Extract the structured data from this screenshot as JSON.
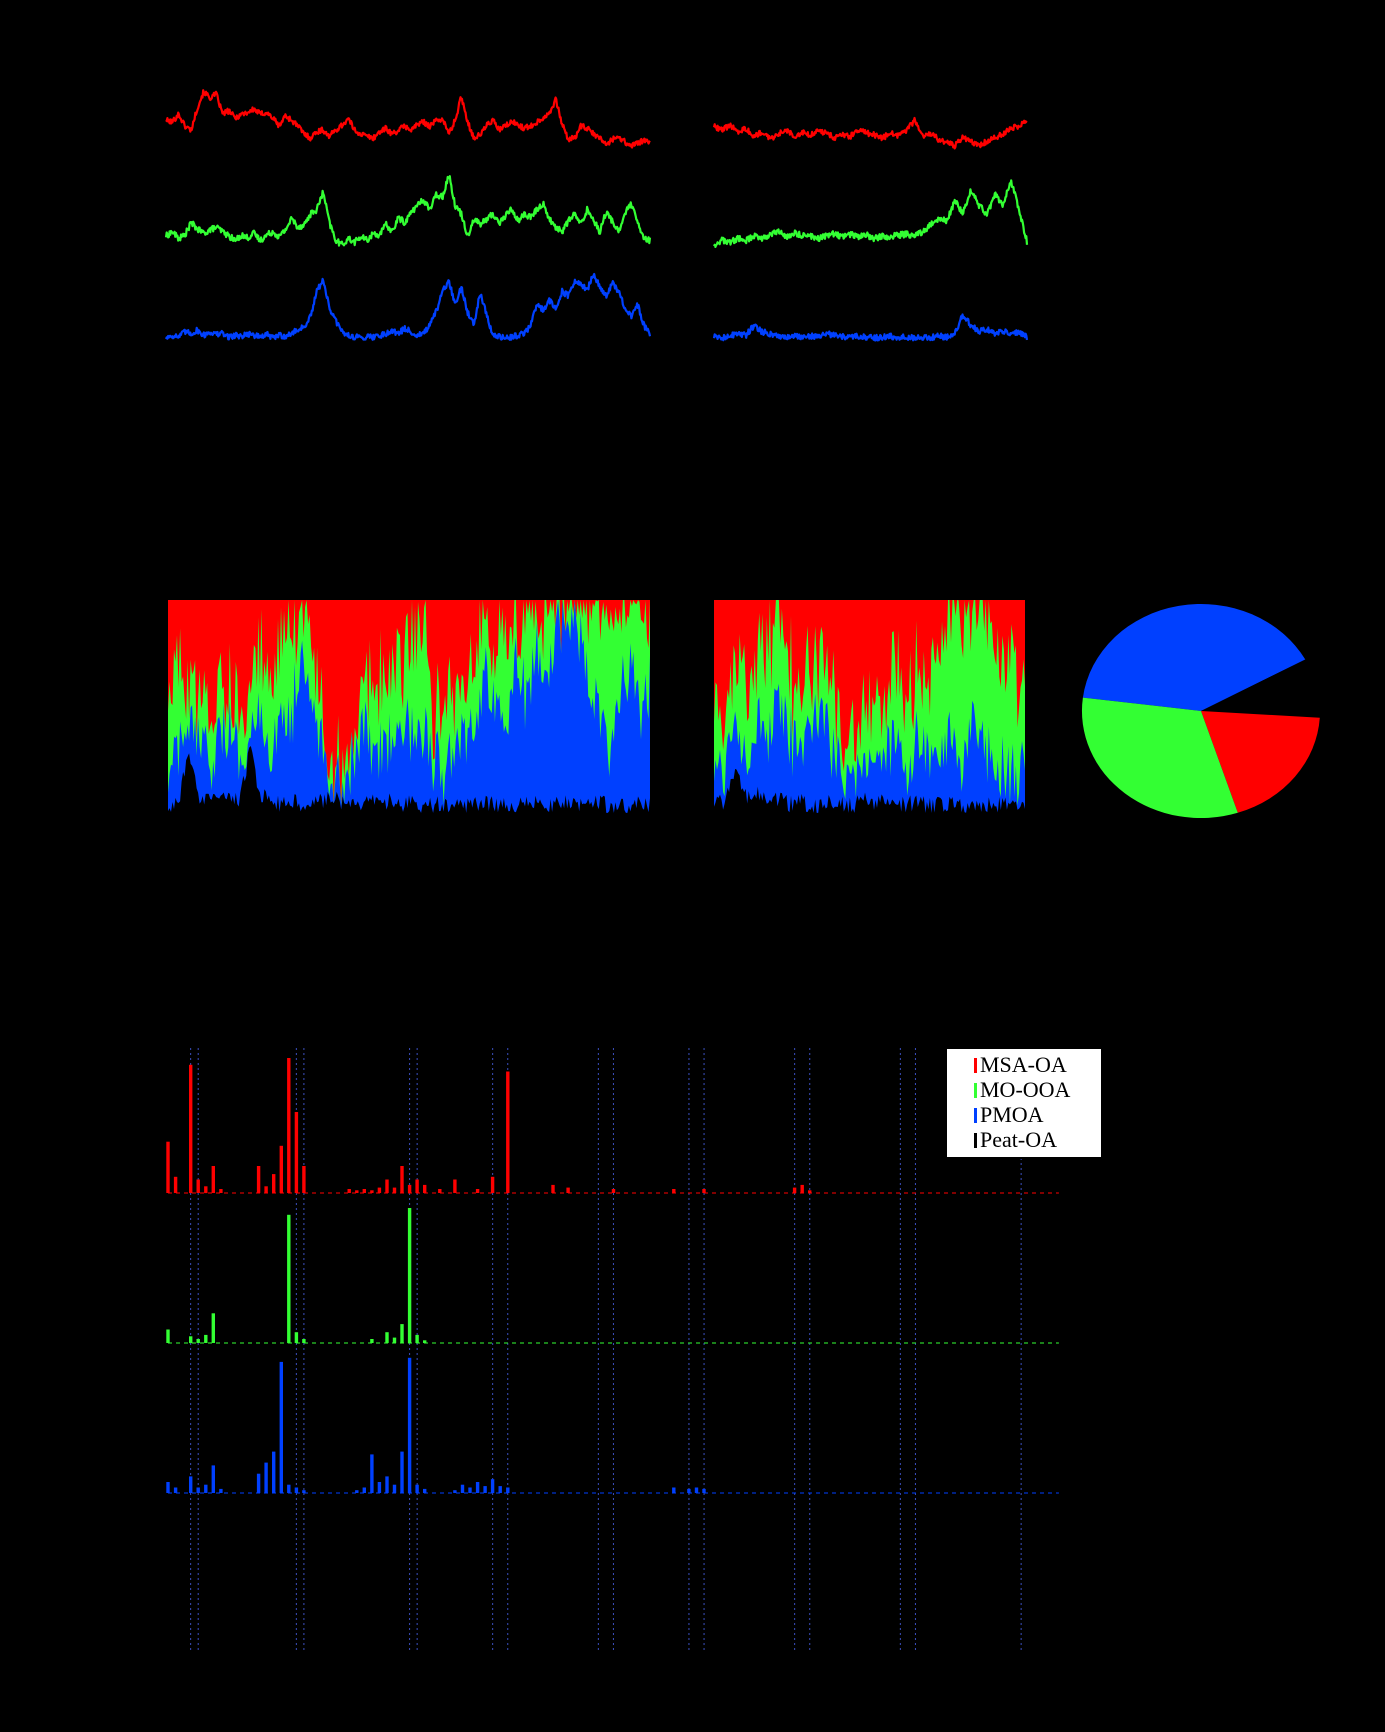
{
  "colors": {
    "MSA-OA": "#ff0000",
    "MO-OOA": "#33ff33",
    "PMOA": "#0040ff",
    "Peat-OA": "#000000",
    "gridline": "#3b4fbf"
  },
  "chart_data": [
    {
      "type": "line",
      "panel": "time series",
      "segments": 2,
      "series": [
        {
          "color_key": "MSA-OA",
          "segment_1": [
            0.62,
            0.6,
            0.7,
            0.55,
            0.5,
            0.78,
            0.98,
            0.9,
            0.95,
            0.7,
            0.74,
            0.65,
            0.7,
            0.72,
            0.76,
            0.7,
            0.72,
            0.65,
            0.55,
            0.68,
            0.62,
            0.55,
            0.45,
            0.4,
            0.48,
            0.5,
            0.42,
            0.5,
            0.56,
            0.64,
            0.5,
            0.45,
            0.42,
            0.4,
            0.48,
            0.52,
            0.45,
            0.5,
            0.55,
            0.5,
            0.57,
            0.6,
            0.55,
            0.62,
            0.64,
            0.45,
            0.62,
            0.92,
            0.6,
            0.4,
            0.44,
            0.56,
            0.62,
            0.5,
            0.55,
            0.6,
            0.57,
            0.52,
            0.55,
            0.6,
            0.65,
            0.72,
            0.88,
            0.58,
            0.38,
            0.4,
            0.55,
            0.52,
            0.45,
            0.4,
            0.32,
            0.38,
            0.42,
            0.35,
            0.3,
            0.34,
            0.36,
            0.34
          ],
          "segment_2": [
            0.55,
            0.5,
            0.56,
            0.48,
            0.52,
            0.42,
            0.48,
            0.38,
            0.45,
            0.5,
            0.42,
            0.48,
            0.44,
            0.5,
            0.46,
            0.4,
            0.45,
            0.42,
            0.5,
            0.46,
            0.44,
            0.4,
            0.46,
            0.42,
            0.5,
            0.62,
            0.42,
            0.46,
            0.38,
            0.34,
            0.3,
            0.4,
            0.36,
            0.3,
            0.36,
            0.4,
            0.45,
            0.52,
            0.55,
            0.62
          ]
        },
        {
          "color_key": "MO-OOA",
          "segment_1": [
            0.25,
            0.3,
            0.22,
            0.26,
            0.4,
            0.33,
            0.28,
            0.32,
            0.35,
            0.3,
            0.25,
            0.2,
            0.26,
            0.23,
            0.28,
            0.2,
            0.26,
            0.3,
            0.24,
            0.32,
            0.45,
            0.35,
            0.38,
            0.5,
            0.55,
            0.75,
            0.4,
            0.2,
            0.15,
            0.22,
            0.18,
            0.24,
            0.2,
            0.28,
            0.26,
            0.38,
            0.3,
            0.46,
            0.4,
            0.52,
            0.6,
            0.66,
            0.55,
            0.72,
            0.7,
            0.95,
            0.6,
            0.5,
            0.25,
            0.45,
            0.38,
            0.44,
            0.5,
            0.4,
            0.48,
            0.56,
            0.42,
            0.5,
            0.46,
            0.55,
            0.62,
            0.44,
            0.35,
            0.3,
            0.42,
            0.5,
            0.38,
            0.55,
            0.44,
            0.3,
            0.52,
            0.42,
            0.3,
            0.5,
            0.62,
            0.4,
            0.22,
            0.2
          ],
          "segment_2": [
            0.15,
            0.2,
            0.18,
            0.22,
            0.2,
            0.25,
            0.23,
            0.26,
            0.3,
            0.24,
            0.28,
            0.26,
            0.25,
            0.22,
            0.25,
            0.28,
            0.24,
            0.27,
            0.24,
            0.26,
            0.22,
            0.25,
            0.24,
            0.26,
            0.27,
            0.25,
            0.3,
            0.38,
            0.45,
            0.42,
            0.65,
            0.5,
            0.78,
            0.6,
            0.5,
            0.72,
            0.6,
            0.88,
            0.55,
            0.18
          ]
        },
        {
          "color_key": "PMOA",
          "segment_1": [
            0.05,
            0.08,
            0.06,
            0.12,
            0.1,
            0.14,
            0.08,
            0.12,
            0.09,
            0.1,
            0.06,
            0.08,
            0.07,
            0.1,
            0.08,
            0.06,
            0.09,
            0.05,
            0.08,
            0.07,
            0.1,
            0.15,
            0.18,
            0.3,
            0.6,
            0.75,
            0.4,
            0.25,
            0.12,
            0.08,
            0.06,
            0.05,
            0.07,
            0.06,
            0.08,
            0.1,
            0.14,
            0.1,
            0.16,
            0.12,
            0.08,
            0.1,
            0.2,
            0.36,
            0.6,
            0.72,
            0.45,
            0.65,
            0.35,
            0.22,
            0.6,
            0.32,
            0.08,
            0.06,
            0.05,
            0.06,
            0.08,
            0.1,
            0.2,
            0.45,
            0.38,
            0.5,
            0.4,
            0.6,
            0.55,
            0.72,
            0.68,
            0.62,
            0.8,
            0.66,
            0.55,
            0.7,
            0.6,
            0.4,
            0.3,
            0.45,
            0.2,
            0.1
          ],
          "segment_2": [
            0.06,
            0.04,
            0.08,
            0.1,
            0.08,
            0.2,
            0.12,
            0.1,
            0.08,
            0.06,
            0.08,
            0.05,
            0.07,
            0.06,
            0.1,
            0.08,
            0.06,
            0.05,
            0.07,
            0.06,
            0.05,
            0.06,
            0.07,
            0.05,
            0.06,
            0.05,
            0.06,
            0.05,
            0.07,
            0.06,
            0.1,
            0.32,
            0.2,
            0.12,
            0.16,
            0.1,
            0.14,
            0.08,
            0.12,
            0.06
          ]
        }
      ]
    },
    {
      "type": "area",
      "panel": "stacked fraction",
      "stacked": true,
      "ylim": [
        0,
        1
      ],
      "series_order_bottom_to_top": [
        "Peat-OA",
        "PMOA",
        "MO-OOA",
        "MSA-OA"
      ],
      "segment_1": {
        "Peat-OA": [
          0.03,
          0.05,
          0.3,
          0.06,
          0.08,
          0.1,
          0.06,
          0.08,
          0.3,
          0.1,
          0.08,
          0.05,
          0.07,
          0.04,
          0.08,
          0.06,
          0.1,
          0.06,
          0.05,
          0.04,
          0.06,
          0.05,
          0.07,
          0.05,
          0.06,
          0.04,
          0.05,
          0.04,
          0.06,
          0.04,
          0.05,
          0.06,
          0.04,
          0.05,
          0.04,
          0.06,
          0.05,
          0.04,
          0.06,
          0.05,
          0.04,
          0.05,
          0.06,
          0.04,
          0.05,
          0.04,
          0.06,
          0.05
        ],
        "PMOA": [
          0.12,
          0.25,
          0.1,
          0.22,
          0.15,
          0.25,
          0.3,
          0.2,
          0.15,
          0.35,
          0.1,
          0.5,
          0.4,
          0.65,
          0.45,
          0.25,
          0.1,
          0.12,
          0.18,
          0.35,
          0.2,
          0.28,
          0.32,
          0.45,
          0.25,
          0.35,
          0.2,
          0.15,
          0.3,
          0.25,
          0.4,
          0.55,
          0.5,
          0.35,
          0.7,
          0.45,
          0.75,
          0.55,
          0.8,
          0.9,
          0.85,
          0.6,
          0.4,
          0.3,
          0.5,
          0.7,
          0.4,
          0.55
        ],
        "MO-OOA": [
          0.4,
          0.35,
          0.2,
          0.22,
          0.25,
          0.2,
          0.15,
          0.25,
          0.3,
          0.3,
          0.35,
          0.3,
          0.35,
          0.2,
          0.3,
          0.1,
          0.05,
          0.06,
          0.1,
          0.2,
          0.35,
          0.25,
          0.35,
          0.3,
          0.45,
          0.5,
          0.2,
          0.3,
          0.25,
          0.2,
          0.3,
          0.25,
          0.3,
          0.4,
          0.2,
          0.4,
          0.15,
          0.3,
          0.1,
          0.05,
          0.08,
          0.3,
          0.5,
          0.6,
          0.4,
          0.22,
          0.5,
          0.35
        ]
      },
      "segment_2": {
        "Peat-OA": [
          0.05,
          0.06,
          0.2,
          0.08,
          0.1,
          0.06,
          0.08,
          0.05,
          0.06,
          0.05,
          0.04,
          0.06,
          0.05,
          0.04,
          0.08,
          0.05,
          0.06,
          0.04,
          0.05,
          0.06,
          0.04,
          0.05,
          0.06,
          0.05,
          0.04,
          0.05,
          0.04,
          0.05,
          0.06,
          0.05
        ],
        "PMOA": [
          0.15,
          0.18,
          0.25,
          0.22,
          0.35,
          0.3,
          0.4,
          0.3,
          0.2,
          0.35,
          0.5,
          0.25,
          0.2,
          0.15,
          0.18,
          0.25,
          0.2,
          0.3,
          0.15,
          0.3,
          0.2,
          0.25,
          0.3,
          0.15,
          0.35,
          0.25,
          0.2,
          0.15,
          0.12,
          0.2
        ],
        "MO-OOA": [
          0.3,
          0.25,
          0.3,
          0.35,
          0.3,
          0.4,
          0.35,
          0.3,
          0.25,
          0.3,
          0.2,
          0.3,
          0.2,
          0.15,
          0.25,
          0.2,
          0.25,
          0.3,
          0.35,
          0.3,
          0.35,
          0.5,
          0.55,
          0.7,
          0.55,
          0.65,
          0.7,
          0.6,
          0.55,
          0.35
        ]
      }
    },
    {
      "type": "pie",
      "panel": "mass fraction",
      "slices": [
        {
          "color_key": "PMOA",
          "fraction": 0.4
        },
        {
          "color_key": "Peat-OA",
          "fraction": 0.09
        },
        {
          "color_key": "MSA-OA",
          "fraction": 0.19
        },
        {
          "color_key": "MO-OOA",
          "fraction": 0.32
        }
      ]
    },
    {
      "type": "bar",
      "panel": "mass spectra",
      "legend": [
        "MSA-OA",
        "MO-OOA",
        "PMOA",
        "Peat-OA"
      ],
      "legend_position": "top-right",
      "x_range": [
        12,
        130
      ],
      "profiles": {
        "MSA-OA": {
          "x": [
            12,
            13,
            15,
            16,
            17,
            18,
            19,
            24,
            25,
            26,
            27,
            28,
            29,
            30,
            36,
            37,
            38,
            39,
            40,
            41,
            42,
            43,
            44,
            45,
            46,
            48,
            50,
            53,
            55,
            57,
            63,
            65,
            71,
            79,
            83,
            95,
            96,
            97
          ],
          "y": [
            0.38,
            0.12,
            0.95,
            0.1,
            0.05,
            0.2,
            0.03,
            0.2,
            0.05,
            0.14,
            0.35,
            1.0,
            0.6,
            0.2,
            0.03,
            0.02,
            0.03,
            0.02,
            0.04,
            0.1,
            0.04,
            0.2,
            0.06,
            0.1,
            0.06,
            0.03,
            0.1,
            0.03,
            0.12,
            0.9,
            0.06,
            0.04,
            0.03,
            0.03,
            0.03,
            0.04,
            0.06,
            0.02
          ]
        },
        "MO-OOA": {
          "x": [
            12,
            15,
            16,
            17,
            18,
            28,
            29,
            30,
            39,
            41,
            42,
            43,
            44,
            45,
            46
          ],
          "y": [
            0.1,
            0.05,
            0.03,
            0.06,
            0.22,
            0.95,
            0.08,
            0.03,
            0.03,
            0.08,
            0.04,
            0.14,
            1.0,
            0.06,
            0.02
          ]
        },
        "PMOA": {
          "x": [
            12,
            13,
            15,
            16,
            17,
            18,
            19,
            24,
            25,
            26,
            27,
            28,
            29,
            30,
            37,
            38,
            39,
            40,
            41,
            42,
            43,
            44,
            45,
            46,
            50,
            51,
            52,
            53,
            54,
            55,
            56,
            57,
            79,
            81,
            82,
            83
          ],
          "y": [
            0.08,
            0.04,
            0.12,
            0.04,
            0.06,
            0.2,
            0.03,
            0.14,
            0.22,
            0.3,
            0.95,
            0.06,
            0.04,
            0.02,
            0.02,
            0.04,
            0.28,
            0.08,
            0.12,
            0.06,
            0.3,
            0.98,
            0.06,
            0.03,
            0.02,
            0.06,
            0.04,
            0.08,
            0.05,
            0.1,
            0.05,
            0.04,
            0.04,
            0.03,
            0.04,
            0.03
          ]
        }
      }
    }
  ]
}
